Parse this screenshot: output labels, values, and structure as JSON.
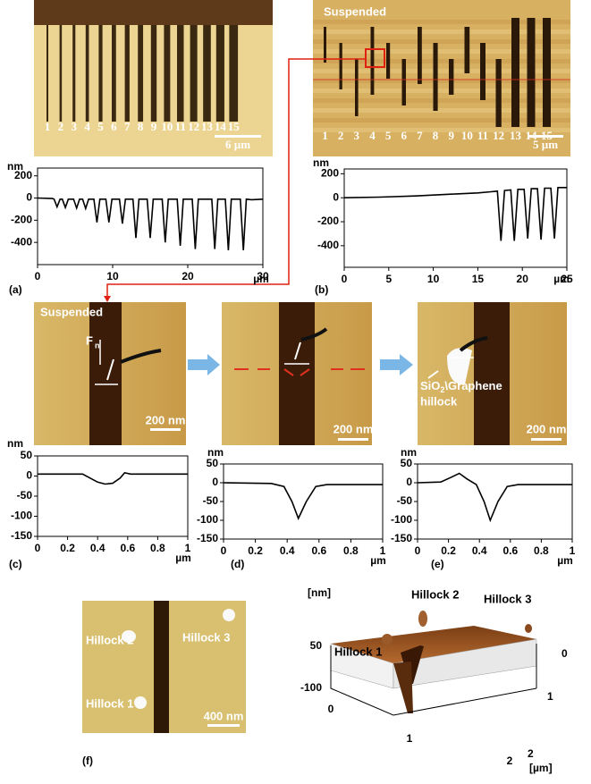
{
  "chart_data": [
    {
      "type": "line",
      "color": "#000000",
      "y_label": "nm",
      "x_label": "µm",
      "xlim": [
        0,
        30
      ],
      "ylim": [
        -600,
        270
      ],
      "xticks": [
        0,
        10,
        20,
        30
      ],
      "yticks": [
        200,
        0,
        -200,
        -400
      ],
      "x": [
        0,
        2,
        2.2,
        2.6,
        3.0,
        3.3,
        3.7,
        4.1,
        4.8,
        5.2,
        5.6,
        6.0,
        6.4,
        6.8,
        7.5,
        7.9,
        8.3,
        9.1,
        9.5,
        9.9,
        10.9,
        11.3,
        11.7,
        12.7,
        13.1,
        13.5,
        14.6,
        15,
        15.4,
        16.6,
        17,
        17.4,
        18.6,
        19,
        19.4,
        20.6,
        21,
        21.4,
        23.2,
        23.6,
        24.0,
        25.0,
        25.4,
        25.8,
        27.0,
        27.4,
        27.8,
        28.5,
        30
      ],
      "values": [
        0,
        -5,
        -10,
        -80,
        -10,
        -10,
        -85,
        -10,
        -10,
        -90,
        -10,
        -10,
        -95,
        -10,
        -10,
        -220,
        -10,
        -10,
        -220,
        -10,
        -10,
        -230,
        -10,
        -10,
        -360,
        -10,
        -10,
        -360,
        -10,
        -10,
        -400,
        -10,
        -10,
        -430,
        -10,
        -10,
        -460,
        -10,
        -10,
        -460,
        -10,
        -10,
        -470,
        -10,
        -10,
        -470,
        -10,
        -15,
        -10
      ]
    },
    {
      "type": "line",
      "color": "#000000",
      "y_label": "nm",
      "x_label": "µm",
      "xlim": [
        0,
        25
      ],
      "ylim": [
        -580,
        240
      ],
      "xticks": [
        0,
        5,
        10,
        15,
        20,
        25
      ],
      "yticks": [
        200,
        0,
        -200,
        -400
      ],
      "x": [
        0,
        4,
        8,
        12,
        15,
        16.5,
        17.2,
        17.6,
        18.0,
        18.7,
        19.1,
        19.5,
        20.2,
        20.6,
        21.0,
        21.7,
        22.1,
        22.5,
        23.2,
        23.6,
        24.0,
        25
      ],
      "values": [
        0,
        5,
        15,
        30,
        40,
        50,
        55,
        -360,
        60,
        65,
        -360,
        70,
        70,
        -340,
        75,
        75,
        -350,
        80,
        80,
        -340,
        85,
        85
      ]
    },
    {
      "type": "line",
      "color": "#000000",
      "y_label": "nm",
      "x_label": "µm",
      "xlim": [
        0,
        1
      ],
      "ylim": [
        -150,
        50
      ],
      "xticks": [
        0,
        0.2,
        0.4,
        0.6,
        0.8,
        1
      ],
      "yticks": [
        50,
        0,
        -50,
        -100,
        -150
      ],
      "x": [
        0,
        0.3,
        0.35,
        0.4,
        0.45,
        0.5,
        0.55,
        0.58,
        0.62,
        1
      ],
      "values": [
        5,
        5,
        -5,
        -15,
        -20,
        -18,
        -5,
        8,
        5,
        5
      ]
    },
    {
      "type": "line",
      "color": "#000000",
      "y_label": "nm",
      "x_label": "µm",
      "xlim": [
        0,
        1
      ],
      "ylim": [
        -150,
        50
      ],
      "xticks": [
        0,
        0.2,
        0.4,
        0.6,
        0.8,
        1
      ],
      "yticks": [
        50,
        0,
        -50,
        -100,
        -150
      ],
      "x": [
        0,
        0.3,
        0.38,
        0.43,
        0.47,
        0.52,
        0.58,
        0.65,
        1
      ],
      "values": [
        0,
        -2,
        -10,
        -50,
        -95,
        -50,
        -10,
        -5,
        -5
      ]
    },
    {
      "type": "line",
      "color": "#000000",
      "y_label": "nm",
      "x_label": "µm",
      "xlim": [
        0,
        1
      ],
      "ylim": [
        -150,
        50
      ],
      "xticks": [
        0,
        0.2,
        0.4,
        0.6,
        0.8,
        1
      ],
      "yticks": [
        50,
        0,
        -50,
        -100,
        -150
      ],
      "x": [
        0,
        0.15,
        0.22,
        0.27,
        0.32,
        0.38,
        0.43,
        0.47,
        0.52,
        0.58,
        0.65,
        1
      ],
      "values": [
        0,
        2,
        15,
        25,
        10,
        -5,
        -50,
        -100,
        -50,
        -10,
        -5,
        -5
      ]
    }
  ],
  "panel_labels": [
    "(a)",
    "(b)",
    "(c)",
    "(d)",
    "(e)",
    "(f)"
  ],
  "image_a": {
    "numbers": [
      "1",
      "2",
      "3",
      "4",
      "5",
      "6",
      "7",
      "8",
      "9",
      "10",
      "11",
      "12",
      "13",
      "14",
      "15"
    ],
    "scale": "6 µm"
  },
  "image_b": {
    "annotation": "Suspended",
    "numbers": [
      "1",
      "2",
      "3",
      "4",
      "5",
      "6",
      "7",
      "8",
      "9",
      "10",
      "11",
      "12",
      "13",
      "14",
      "15"
    ],
    "scale": "5 µm"
  },
  "image_c": {
    "annotation": "Suspended",
    "force": "F",
    "force_sub": "n",
    "scale": "200 nm"
  },
  "image_d": {
    "scale": "200 nm"
  },
  "image_e": {
    "annotation": "SiO",
    "annotation_sub": "2",
    "annotation_rest": "\\Graphene",
    "annotation_line2": "hillock",
    "scale": "200 nm"
  },
  "image_f": {
    "labels": [
      "Hillock 1",
      "Hillock 2",
      "Hillock 3"
    ],
    "scale": "400 nm"
  },
  "surface_3d": {
    "unit": "[nm]",
    "zticks": [
      "50",
      "-100"
    ],
    "xticks": [
      "0",
      "1",
      "2"
    ],
    "yticks": [
      "0",
      "1",
      "2"
    ],
    "xy_unit": "[µm]",
    "labels": [
      "Hillock 1",
      "Hillock 2",
      "Hillock 3"
    ]
  }
}
